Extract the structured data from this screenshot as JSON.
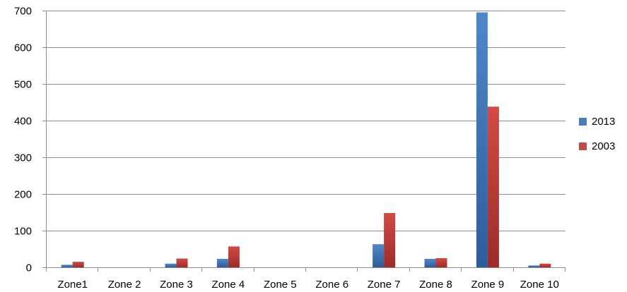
{
  "chart_data": {
    "type": "bar",
    "categories": [
      "Zone1",
      "Zone 2",
      "Zone 3",
      "Zone 4",
      "Zone 5",
      "Zone 6",
      "Zone 7",
      "Zone 8",
      "Zone 9",
      "Zone 10"
    ],
    "series": [
      {
        "name": "2013",
        "values": [
          7,
          0,
          10,
          23,
          0,
          0,
          63,
          23,
          695,
          5
        ],
        "color": "#4a7ebb"
      },
      {
        "name": "2003",
        "values": [
          15,
          0,
          24,
          57,
          0,
          0,
          148,
          25,
          438,
          10
        ],
        "color": "#be4b48"
      }
    ],
    "yticks": [
      0,
      100,
      200,
      300,
      400,
      500,
      600,
      700
    ],
    "ylim": [
      0,
      700
    ],
    "grid": true,
    "legend_position": "right"
  }
}
